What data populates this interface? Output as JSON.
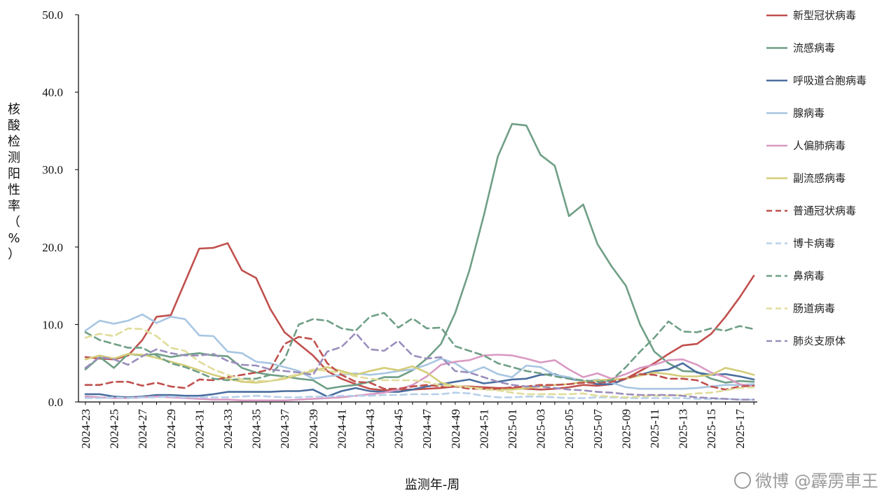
{
  "chart_data": {
    "type": "line",
    "xlabel": "监测年-周",
    "ylabel": "核酸检测阳性率（%）",
    "ylim": [
      0,
      50
    ],
    "yticks": [
      "0.0",
      "10.0",
      "20.0",
      "30.0",
      "40.0",
      "50.0"
    ],
    "legend_position": "right",
    "grid": false,
    "categories": [
      "2024-23",
      "2024-24",
      "2024-25",
      "2024-26",
      "2024-27",
      "2024-28",
      "2024-29",
      "2024-30",
      "2024-31",
      "2024-32",
      "2024-33",
      "2024-34",
      "2024-35",
      "2024-36",
      "2024-37",
      "2024-38",
      "2024-39",
      "2024-40",
      "2024-41",
      "2024-42",
      "2024-43",
      "2024-44",
      "2024-45",
      "2024-46",
      "2024-47",
      "2024-48",
      "2024-49",
      "2024-50",
      "2024-51",
      "2024-52",
      "2025-01",
      "2025-02",
      "2025-03",
      "2025-04",
      "2025-05",
      "2025-06",
      "2025-07",
      "2025-08",
      "2025-09",
      "2025-10",
      "2025-11",
      "2025-12",
      "2025-13",
      "2025-14",
      "2025-15",
      "2025-16",
      "2025-17",
      "2025-18"
    ],
    "tick_labels": [
      "2024-23",
      "2024-25",
      "2024-27",
      "2024-29",
      "2024-31",
      "2024-33",
      "2024-35",
      "2024-37",
      "2024-39",
      "2024-41",
      "2024-43",
      "2024-45",
      "2024-47",
      "2024-49",
      "2024-51",
      "2025-01",
      "2025-03",
      "2025-05",
      "2025-07",
      "2025-09",
      "2025-11",
      "2025-13",
      "2025-15",
      "2025-17"
    ],
    "series": [
      {
        "name": "新型冠状病毒",
        "color": "#c0504d",
        "dash": false,
        "values": [
          5.8,
          5.6,
          5.5,
          6.0,
          8.0,
          11.0,
          11.2,
          15.5,
          19.8,
          19.9,
          20.5,
          17.0,
          16.0,
          12.0,
          9.0,
          7.5,
          6.0,
          4.0,
          3.0,
          2.3,
          1.7,
          1.5,
          1.6,
          1.6,
          1.7,
          1.8,
          2.0,
          2.0,
          1.9,
          1.8,
          1.8,
          1.7,
          1.6,
          1.7,
          1.9,
          2.2,
          2.1,
          2.3,
          3.0,
          4.0,
          5.0,
          6.2,
          7.3,
          7.5,
          8.8,
          11.0,
          13.5,
          16.3
        ]
      },
      {
        "name": "流感病毒",
        "color": "#6f9f86",
        "dash": false,
        "values": [
          4.2,
          5.8,
          4.4,
          6.2,
          6.0,
          6.2,
          5.8,
          6.1,
          6.3,
          6.0,
          5.9,
          4.4,
          3.8,
          3.5,
          3.3,
          3.0,
          2.8,
          1.7,
          2.0,
          2.2,
          2.6,
          3.2,
          3.2,
          4.1,
          5.6,
          7.5,
          11.5,
          17.0,
          24.0,
          31.7,
          35.9,
          35.7,
          31.9,
          30.5,
          24.0,
          25.5,
          20.4,
          17.5,
          15.0,
          10.0,
          6.5,
          5.0,
          4.0,
          3.9,
          3.0,
          2.5,
          2.7,
          2.6
        ]
      },
      {
        "name": "呼吸道合胞病毒",
        "color": "#4a6e9f",
        "dash": false,
        "values": [
          1.0,
          1.0,
          0.7,
          0.6,
          0.7,
          0.9,
          0.9,
          0.8,
          0.8,
          1.0,
          1.3,
          1.3,
          1.3,
          1.3,
          1.4,
          1.4,
          1.6,
          0.7,
          1.4,
          1.8,
          1.4,
          1.3,
          1.3,
          1.6,
          2.0,
          2.3,
          2.6,
          2.9,
          2.4,
          2.6,
          2.9,
          3.0,
          3.5,
          3.6,
          3.0,
          2.7,
          2.3,
          2.3,
          3.0,
          3.5,
          4.0,
          4.2,
          5.0,
          3.8,
          3.5,
          3.6,
          3.3,
          2.9
        ]
      },
      {
        "name": "腺病毒",
        "color": "#a8c6e2",
        "dash": false,
        "values": [
          9.2,
          10.5,
          10.1,
          10.5,
          11.3,
          10.2,
          11.0,
          10.7,
          8.6,
          8.5,
          6.5,
          6.3,
          5.2,
          5.0,
          4.5,
          4.0,
          3.0,
          3.3,
          3.5,
          3.7,
          3.5,
          3.7,
          4.0,
          4.2,
          4.8,
          5.6,
          5.0,
          3.8,
          4.5,
          3.6,
          3.2,
          4.7,
          4.5,
          3.5,
          3.2,
          2.6,
          2.9,
          2.5,
          1.9,
          1.7,
          1.7,
          1.7,
          1.7,
          1.8,
          2.0,
          2.2,
          2.2,
          2.3
        ]
      },
      {
        "name": "人偏肺病毒",
        "color": "#d99ac3",
        "dash": false,
        "values": [
          0.7,
          0.6,
          0.5,
          0.5,
          0.6,
          0.7,
          0.6,
          0.5,
          0.4,
          0.3,
          0.3,
          0.2,
          0.2,
          0.2,
          0.2,
          0.3,
          0.4,
          0.5,
          0.6,
          0.8,
          1.0,
          1.2,
          1.6,
          2.2,
          3.3,
          4.8,
          5.2,
          5.4,
          6.0,
          6.1,
          6.0,
          5.6,
          5.1,
          5.4,
          4.2,
          3.2,
          3.7,
          3.0,
          3.6,
          4.4,
          4.8,
          5.4,
          5.5,
          4.8,
          3.8,
          3.2,
          2.3,
          2.0
        ]
      },
      {
        "name": "副流感病毒",
        "color": "#d4cd7a",
        "dash": false,
        "values": [
          5.5,
          6.0,
          5.6,
          6.2,
          6.1,
          5.7,
          5.2,
          4.7,
          4.1,
          3.5,
          3.0,
          2.6,
          2.5,
          2.7,
          3.0,
          3.5,
          4.0,
          4.5,
          4.0,
          3.5,
          4.0,
          4.4,
          4.1,
          4.6,
          3.8,
          2.5,
          2.0,
          1.9,
          1.7,
          1.6,
          1.6,
          1.8,
          2.0,
          2.2,
          2.3,
          2.6,
          2.8,
          2.9,
          3.0,
          3.4,
          3.8,
          3.6,
          3.3,
          3.3,
          3.5,
          4.4,
          4.0,
          3.5
        ]
      },
      {
        "name": "普通冠状病毒",
        "color": "#c0504d",
        "dash": true,
        "values": [
          2.2,
          2.2,
          2.6,
          2.6,
          2.1,
          2.5,
          2.0,
          1.8,
          2.9,
          2.8,
          3.2,
          3.5,
          3.8,
          4.2,
          7.5,
          8.4,
          8.1,
          5.0,
          3.5,
          2.6,
          2.5,
          1.7,
          1.7,
          2.0,
          2.2,
          2.0,
          2.0,
          1.7,
          1.7,
          1.7,
          1.9,
          2.0,
          2.2,
          2.2,
          2.3,
          2.5,
          2.5,
          2.6,
          3.0,
          3.6,
          3.5,
          3.0,
          3.0,
          2.8,
          2.0,
          1.6,
          2.0,
          2.1
        ]
      },
      {
        "name": "博卡病毒",
        "color": "#b8d0ea",
        "dash": true,
        "values": [
          0.5,
          0.5,
          0.6,
          0.5,
          0.6,
          0.6,
          0.7,
          0.6,
          0.6,
          0.6,
          0.6,
          0.7,
          0.8,
          0.7,
          0.6,
          0.6,
          0.7,
          0.7,
          0.8,
          0.8,
          0.8,
          0.9,
          0.9,
          1.0,
          1.0,
          1.0,
          1.2,
          1.1,
          0.8,
          0.6,
          0.6,
          0.7,
          0.7,
          0.6,
          0.5,
          0.5,
          0.6,
          0.6,
          0.5,
          0.5,
          0.5,
          0.5,
          0.5,
          0.4,
          0.4,
          0.4,
          0.3,
          0.3
        ]
      },
      {
        "name": "鼻病毒",
        "color": "#6f9f86",
        "dash": true,
        "values": [
          9.0,
          8.0,
          7.5,
          7.0,
          7.0,
          6.0,
          5.0,
          4.5,
          3.8,
          3.0,
          2.8,
          3.0,
          3.0,
          3.5,
          5.5,
          10.0,
          10.7,
          10.5,
          9.5,
          9.2,
          11.0,
          11.5,
          9.6,
          10.8,
          9.5,
          9.6,
          7.2,
          6.6,
          6.0,
          5.0,
          4.5,
          4.0,
          3.7,
          3.3,
          3.0,
          2.8,
          2.6,
          2.8,
          4.5,
          6.5,
          8.3,
          10.4,
          9.1,
          9.0,
          9.5,
          9.2,
          9.8,
          9.4
        ]
      },
      {
        "name": "肠道病毒",
        "color": "#e0dc9a",
        "dash": true,
        "values": [
          8.3,
          8.8,
          8.5,
          9.5,
          9.4,
          8.5,
          7.0,
          6.6,
          5.2,
          4.2,
          3.5,
          2.9,
          2.7,
          2.7,
          3.2,
          3.6,
          4.2,
          4.0,
          3.8,
          3.3,
          3.0,
          2.8,
          2.8,
          2.8,
          2.6,
          2.1,
          2.1,
          1.9,
          1.6,
          1.5,
          1.2,
          1.0,
          1.0,
          1.0,
          1.0,
          1.1,
          0.8,
          0.7,
          0.6,
          0.7,
          0.8,
          0.8,
          0.9,
          1.1,
          1.2,
          1.5,
          1.8,
          1.9
        ]
      },
      {
        "name": "肺炎支原体",
        "color": "#9b8ebc",
        "dash": true,
        "values": [
          4.4,
          5.8,
          5.5,
          4.8,
          5.9,
          6.8,
          6.3,
          6.0,
          6.0,
          6.2,
          5.3,
          4.8,
          4.7,
          4.2,
          4.0,
          3.8,
          3.5,
          6.5,
          7.1,
          8.9,
          6.8,
          6.6,
          7.9,
          6.0,
          5.6,
          5.8,
          4.0,
          3.8,
          3.2,
          2.6,
          2.2,
          2.0,
          2.0,
          1.8,
          1.6,
          1.5,
          1.3,
          1.2,
          1.0,
          0.9,
          0.9,
          0.9,
          0.8,
          0.6,
          0.5,
          0.4,
          0.3,
          0.3
        ]
      }
    ]
  },
  "watermark": "微博 @霹雳車王"
}
